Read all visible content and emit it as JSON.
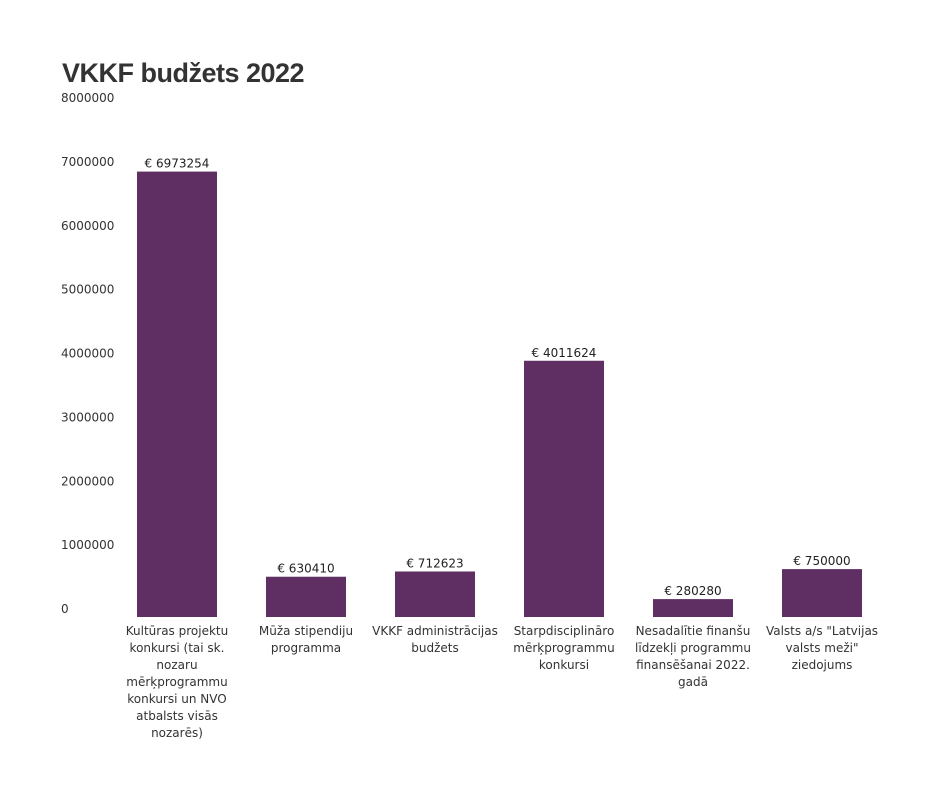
{
  "chart_data": {
    "type": "bar",
    "title": "VKKF budžets 2022",
    "xlabel": "",
    "ylabel": "",
    "ylim": [
      0,
      8000000
    ],
    "yticks": [
      "0",
      "1000000",
      "2000000",
      "3000000",
      "4000000",
      "5000000",
      "6000000",
      "7000000",
      "8000000"
    ],
    "grid": false,
    "legend": "none",
    "bar_color": "#5f2f63",
    "value_prefix": "€ ",
    "categories": [
      "Kultūras projektu konkursi (tai sk. nozaru mērķprogrammu konkursi un NVO atbalsts visās nozarēs)",
      "Mūža stipendiju programma",
      "VKKF administrācijas budžets",
      "Starpdisciplināro mērķprogrammu konkursi",
      "Nesadalītie finanšu līdzekļi programmu finansēšanai 2022. gadā",
      "Valsts a/s \"Latvijas valsts meži\" ziedojums"
    ],
    "category_lines": [
      [
        "Kultūras projektu",
        "konkursi (tai sk.",
        "nozaru",
        "mērķprogrammu",
        "konkursi un NVO",
        "atbalsts visās nozarēs)"
      ],
      [
        "Mūža stipendiju",
        "programma"
      ],
      [
        "VKKF administrācijas",
        "budžets"
      ],
      [
        "Starpdisciplināro",
        "mērķprogrammu",
        "konkursi"
      ],
      [
        "Nesadalītie finanšu",
        "līdzekļi programmu",
        "finansēšanai 2022.",
        "gadā"
      ],
      [
        "Valsts a/s \"Latvijas",
        "valsts meži\"",
        "ziedojums"
      ]
    ],
    "values": [
      6973254,
      630410,
      712623,
      4011624,
      280280,
      750000
    ],
    "value_labels": [
      "€ 6973254",
      "€ 630410",
      "€ 712623",
      "€ 4011624",
      "€ 280280",
      "€ 750000"
    ]
  }
}
